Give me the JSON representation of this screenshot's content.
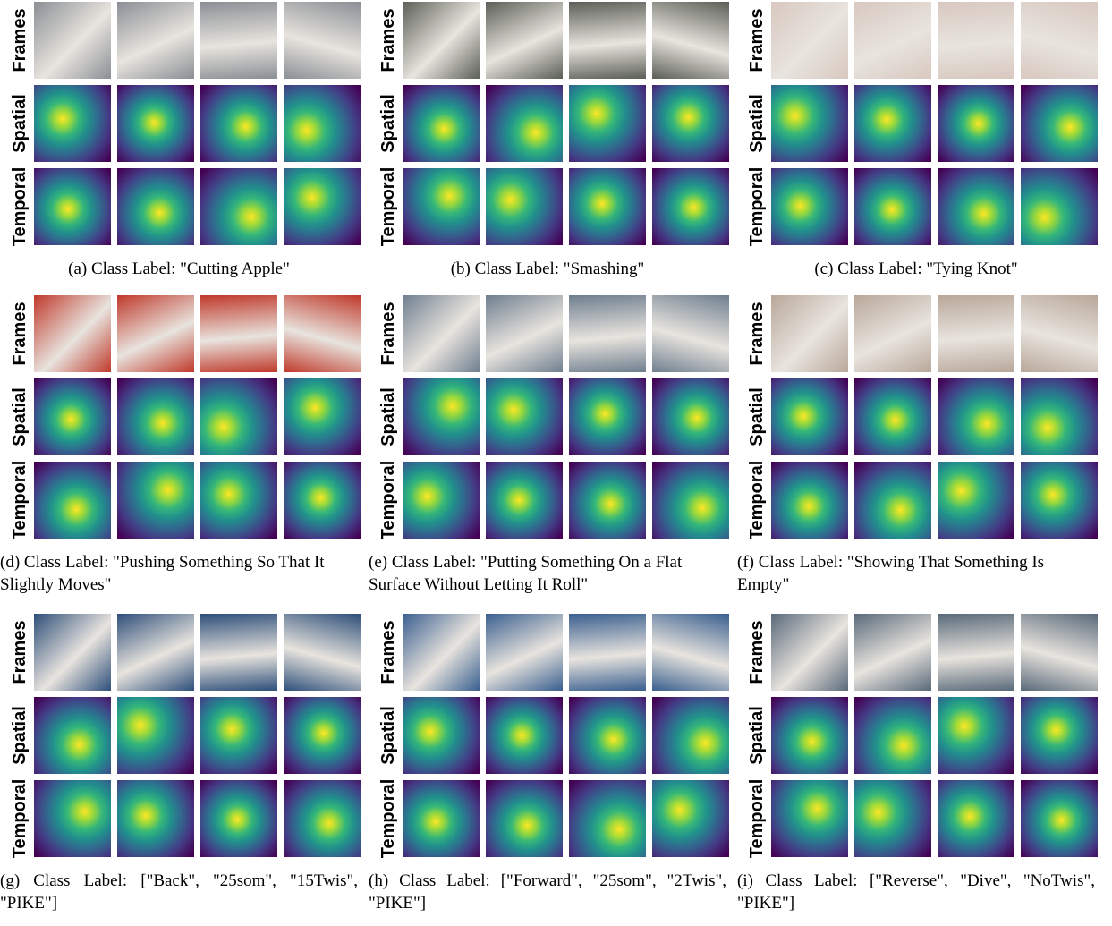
{
  "row_labels": [
    "Frames",
    "Spatial",
    "Temporal"
  ],
  "panels": [
    {
      "caption": "(a) Class Label: \"Cutting Apple\""
    },
    {
      "caption": "(b) Class Label: \"Smashing\""
    },
    {
      "caption": "(c) Class Label: \"Tying Knot\""
    },
    {
      "caption": "(d) Class Label: \"Pushing Something So That It Slightly Moves\""
    },
    {
      "caption": "(e) Class Label: \"Putting Something On a Flat Surface Without Letting It Roll\""
    },
    {
      "caption": "(f) Class Label: \"Showing That Something Is Empty\""
    },
    {
      "caption": "(g) Class Label: [\"Back\", \"25som\", \"15Twis\", \"PIKE\"]"
    },
    {
      "caption": "(h) Class Label: [\"Forward\", \"25som\", \"2Twis\", \"PIKE\"]"
    },
    {
      "caption": "(i) Class Label: [\"Reverse\", \"Dive\", \"NoTwis\", \"PIKE\"]"
    }
  ]
}
